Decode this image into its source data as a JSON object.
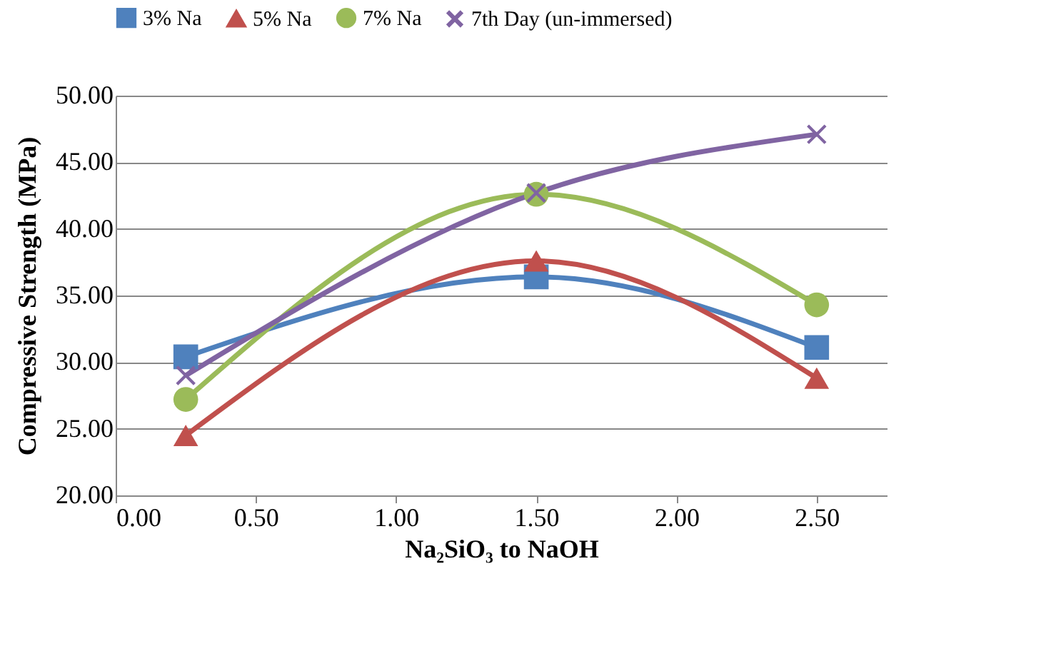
{
  "chart_data": {
    "type": "line",
    "xlabel": "Na₂SiO₃   to NaOH",
    "ylabel": "Compressive Strength (MPa)",
    "x": [
      0.25,
      1.5,
      2.5
    ],
    "series": [
      {
        "name": "3% Na",
        "color": "#4f81bd",
        "marker": "square",
        "values": [
          30.4,
          36.4,
          31.1
        ]
      },
      {
        "name": "5% Na",
        "color": "#c0504d",
        "marker": "triangle",
        "values": [
          24.5,
          37.6,
          28.8
        ]
      },
      {
        "name": "7% Na",
        "color": "#9bbb59",
        "marker": "circle",
        "values": [
          27.2,
          42.6,
          34.3
        ]
      },
      {
        "name": "7th Day (un-immersed)",
        "color": "#8064a2",
        "marker": "cross",
        "values": [
          29.0,
          42.7,
          47.1
        ]
      }
    ],
    "xlim": [
      0,
      2.75
    ],
    "xticks": [
      {
        "value": 0,
        "label": "0.00"
      },
      {
        "value": 0.5,
        "label": "0.50"
      },
      {
        "value": 1,
        "label": "1.00"
      },
      {
        "value": 1.5,
        "label": "1.50"
      },
      {
        "value": 2,
        "label": "2.00"
      },
      {
        "value": 2.5,
        "label": "2.50"
      }
    ],
    "ylim": [
      20,
      50
    ],
    "yticks": [
      {
        "value": 20,
        "label": "20.00"
      },
      {
        "value": 25,
        "label": "25.00"
      },
      {
        "value": 30,
        "label": "30.00"
      },
      {
        "value": 35,
        "label": "35.00"
      },
      {
        "value": 40,
        "label": "40.00"
      },
      {
        "value": 45,
        "label": "45.00"
      },
      {
        "value": 50,
        "label": "50.00"
      }
    ],
    "grid": "y",
    "legend": "top",
    "line_style": "solid"
  }
}
